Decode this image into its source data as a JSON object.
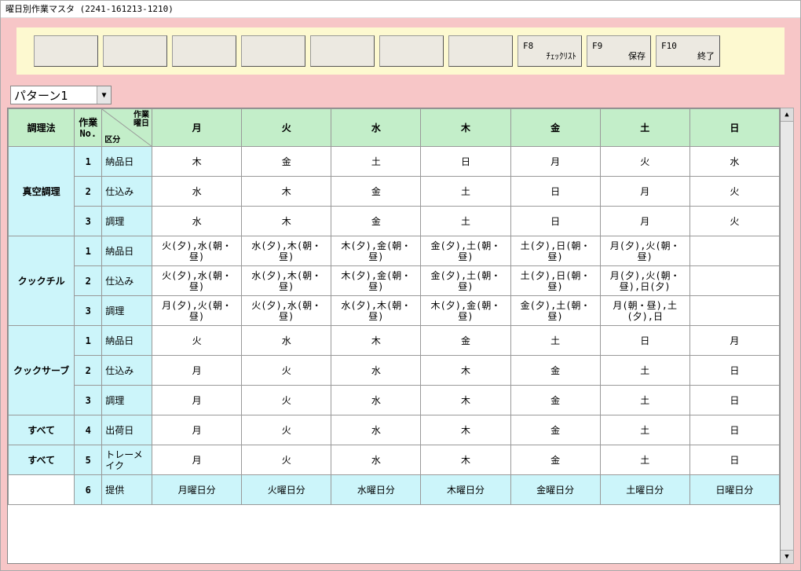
{
  "window": {
    "title": "曜日別作業マスタ (2241-161213-1210)"
  },
  "toolbar": {
    "buttons": [
      {
        "fk": "",
        "label": ""
      },
      {
        "fk": "",
        "label": ""
      },
      {
        "fk": "",
        "label": ""
      },
      {
        "fk": "",
        "label": ""
      },
      {
        "fk": "",
        "label": ""
      },
      {
        "fk": "",
        "label": ""
      },
      {
        "fk": "",
        "label": ""
      },
      {
        "fk": "F8",
        "label": "ﾁｪｯｸﾘｽﾄ"
      },
      {
        "fk": "F9",
        "label": "保存"
      },
      {
        "fk": "F10",
        "label": "終了"
      }
    ]
  },
  "pattern": {
    "selected": "パターン1"
  },
  "table": {
    "headers": {
      "method": "調理法",
      "no": "作業\nNo.",
      "diag_top": "作業\n曜日",
      "diag_bottom": "区分",
      "days": [
        "月",
        "火",
        "水",
        "木",
        "金",
        "土",
        "日"
      ]
    },
    "groups": [
      {
        "method": "真空調理",
        "rows": [
          {
            "no": "1",
            "kubun": "納品日",
            "cells": [
              "木",
              "金",
              "土",
              "日",
              "月",
              "火",
              "水"
            ]
          },
          {
            "no": "2",
            "kubun": "仕込み",
            "cells": [
              "水",
              "木",
              "金",
              "土",
              "日",
              "月",
              "火"
            ]
          },
          {
            "no": "3",
            "kubun": "調理",
            "cells": [
              "水",
              "木",
              "金",
              "土",
              "日",
              "月",
              "火"
            ]
          }
        ]
      },
      {
        "method": "クックチル",
        "rows": [
          {
            "no": "1",
            "kubun": "納品日",
            "cells": [
              "火(夕),水(朝・昼)",
              "水(夕),木(朝・昼)",
              "木(夕),金(朝・昼)",
              "金(夕),土(朝・昼)",
              "土(夕),日(朝・昼)",
              "月(夕),火(朝・昼)",
              ""
            ]
          },
          {
            "no": "2",
            "kubun": "仕込み",
            "cells": [
              "火(夕),水(朝・昼)",
              "水(夕),木(朝・昼)",
              "木(夕),金(朝・昼)",
              "金(夕),土(朝・昼)",
              "土(夕),日(朝・昼)",
              "月(夕),火(朝・昼),日(夕)",
              ""
            ]
          },
          {
            "no": "3",
            "kubun": "調理",
            "cells": [
              "月(夕),火(朝・昼)",
              "火(夕),水(朝・昼)",
              "水(夕),木(朝・昼)",
              "木(夕),金(朝・昼)",
              "金(夕),土(朝・昼)",
              "月(朝・昼),土(夕),日",
              ""
            ]
          }
        ]
      },
      {
        "method": "クックサーブ",
        "rows": [
          {
            "no": "1",
            "kubun": "納品日",
            "cells": [
              "火",
              "水",
              "木",
              "金",
              "土",
              "日",
              "月"
            ]
          },
          {
            "no": "2",
            "kubun": "仕込み",
            "cells": [
              "月",
              "火",
              "水",
              "木",
              "金",
              "土",
              "日"
            ]
          },
          {
            "no": "3",
            "kubun": "調理",
            "cells": [
              "月",
              "火",
              "水",
              "木",
              "金",
              "土",
              "日"
            ]
          }
        ]
      },
      {
        "method": "すべて",
        "rows": [
          {
            "no": "4",
            "kubun": "出荷日",
            "cells": [
              "月",
              "火",
              "水",
              "木",
              "金",
              "土",
              "日"
            ]
          }
        ]
      },
      {
        "method": "すべて",
        "rows": [
          {
            "no": "5",
            "kubun": "トレーメイク",
            "cells": [
              "月",
              "火",
              "水",
              "木",
              "金",
              "土",
              "日"
            ]
          }
        ]
      },
      {
        "method": "",
        "highlight": true,
        "rows": [
          {
            "no": "6",
            "kubun": "提供",
            "cells": [
              "月曜日分",
              "火曜日分",
              "水曜日分",
              "木曜日分",
              "金曜日分",
              "土曜日分",
              "日曜日分"
            ]
          }
        ]
      }
    ]
  },
  "colors": {
    "client_bg": "#f7c6c7",
    "toolbar_bg": "#fdf9d0",
    "header_bg": "#c3eec9",
    "rowhead_bg": "#ccf5fa"
  }
}
